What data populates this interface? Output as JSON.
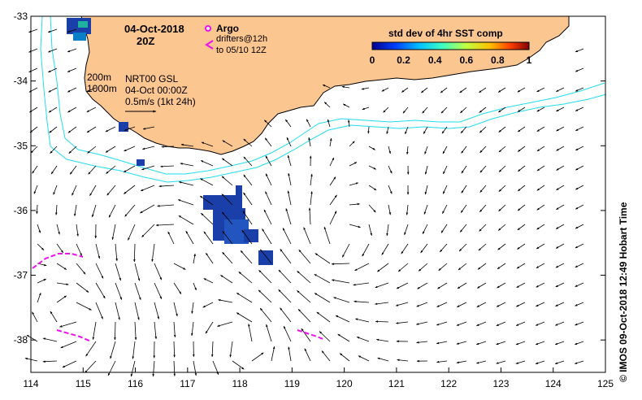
{
  "title": {
    "date": "04-Oct-2018",
    "time": "20Z"
  },
  "legend": {
    "argo_label": "Argo",
    "drifters_line1": "drifters@12h",
    "drifters_line2": "to 05/10 12Z",
    "sst_title": "std dev of 4hr SST comp",
    "sst_ticks": [
      "0",
      "0.2",
      "0.4",
      "0.6",
      "0.8",
      "1"
    ]
  },
  "contours": {
    "label_200": "200m",
    "label_1000": "1000m"
  },
  "velocity": {
    "product": "NRT00 GSL",
    "time": "04-Oct 00:00Z",
    "scale": "0.5m/s (1kt 24h)"
  },
  "axes": {
    "x_ticks": [
      "114",
      "115",
      "116",
      "117",
      "118",
      "119",
      "120",
      "121",
      "122",
      "123",
      "124",
      "125"
    ],
    "y_ticks": [
      "-33",
      "-34",
      "-35",
      "-36",
      "-37",
      "-38"
    ],
    "xlim": [
      114,
      125
    ],
    "ylim": [
      -38.5,
      -33
    ]
  },
  "credit": "© IMOS 09-Oct-2018 12:49 Hobart Time",
  "colors": {
    "land": "#FCC690",
    "contour": "#22DDEE",
    "drifter": "#EE11EE",
    "sst_patch": "#1A3FA8"
  }
}
